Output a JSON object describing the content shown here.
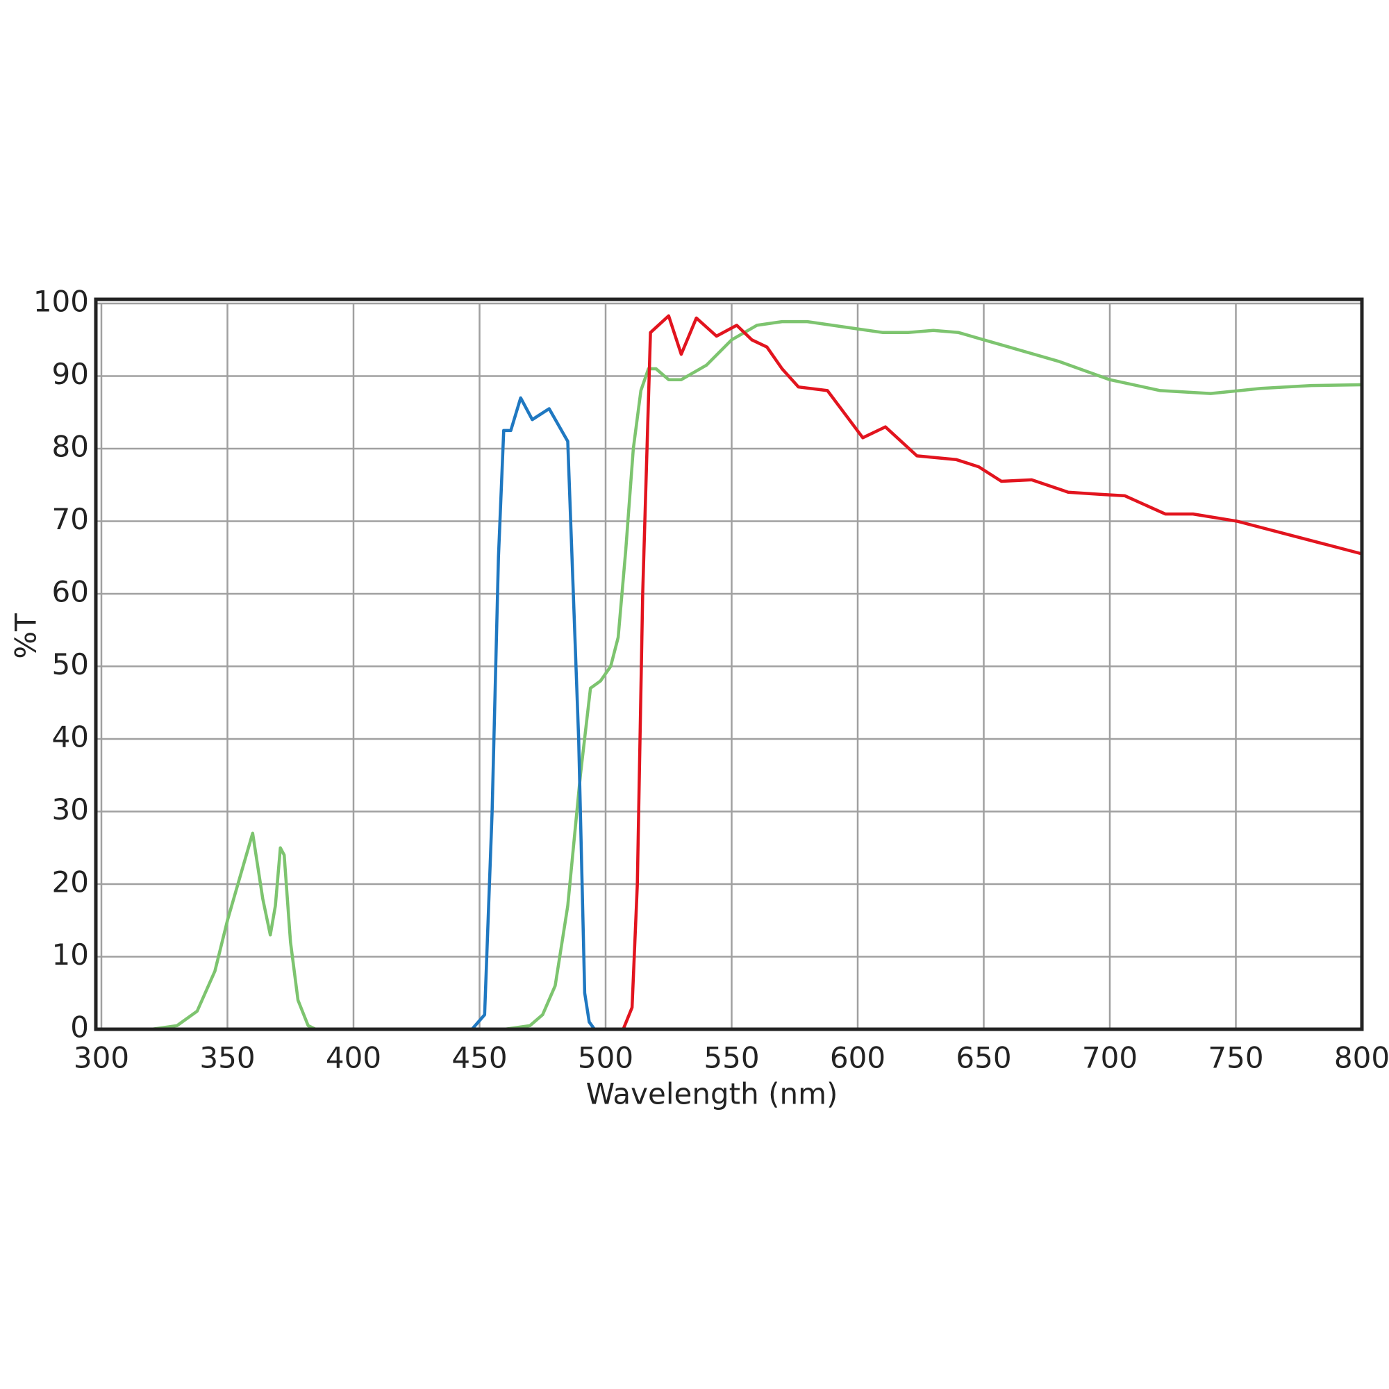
{
  "chart_data": {
    "type": "line",
    "x_label": "Wavelength (nm)",
    "y_label": "%T",
    "xlim": [
      300,
      800
    ],
    "ylim": [
      0,
      100
    ],
    "xticks": [
      300,
      350,
      400,
      450,
      500,
      550,
      600,
      650,
      700,
      750,
      800
    ],
    "yticks": [
      0,
      10,
      20,
      30,
      40,
      50,
      60,
      70,
      80,
      90,
      100
    ],
    "grid": true,
    "series": [
      {
        "color": "#7dc46f",
        "x": [
          300,
          320,
          330,
          338,
          345,
          350,
          355,
          360,
          364,
          367,
          369,
          371,
          372.5,
          375,
          378,
          382,
          385,
          400,
          450,
          460,
          470,
          475,
          480,
          485,
          490,
          494,
          498,
          502,
          505,
          508,
          511,
          514,
          517,
          520,
          525,
          530,
          540,
          550,
          560,
          570,
          580,
          600,
          610,
          620,
          630,
          640,
          650,
          660,
          680,
          700,
          720,
          740,
          760,
          780,
          800
        ],
        "values": [
          0,
          0,
          0.5,
          2.5,
          8,
          15,
          21,
          27,
          18,
          13,
          17,
          25,
          24,
          12,
          4,
          0.5,
          0,
          0,
          0,
          0,
          0.5,
          2,
          6,
          17,
          35,
          47,
          48,
          50,
          54,
          66,
          80,
          88,
          91,
          91,
          89.5,
          89.5,
          91.5,
          95,
          97,
          97.5,
          97.5,
          96.5,
          96,
          96,
          96.3,
          96,
          95,
          94,
          92,
          89.5,
          88,
          87.6,
          88.3,
          88.7,
          88.8
        ]
      },
      {
        "color": "#1f78c1",
        "x": [
          300,
          447,
          452,
          455,
          457.5,
          459.6,
          462.4,
          466.3,
          470.9,
          477.6,
          485,
          489.3,
          491.7,
          493.5,
          495.6,
          500
        ],
        "values": [
          0,
          0,
          2,
          30,
          65,
          82.5,
          82.5,
          87,
          84,
          85.5,
          81,
          40,
          5,
          1,
          0,
          0
        ]
      },
      {
        "color": "#e2141e",
        "x": [
          300,
          507,
          510.5,
          512.6,
          514.7,
          517.8,
          525,
          530,
          536,
          544,
          552,
          558,
          564,
          570,
          576.5,
          588,
          602,
          611,
          623.5,
          639,
          648,
          657,
          669,
          683.5,
          696,
          706,
          722,
          733,
          750.5,
          800
        ],
        "values": [
          0,
          0,
          3,
          20,
          60,
          96,
          98.3,
          93,
          98,
          95.5,
          97,
          95,
          94,
          91,
          88.5,
          88,
          81.5,
          83,
          79,
          78.5,
          77.5,
          75.5,
          75.7,
          74,
          73.7,
          73.5,
          71,
          71,
          70,
          65.5
        ]
      }
    ]
  }
}
